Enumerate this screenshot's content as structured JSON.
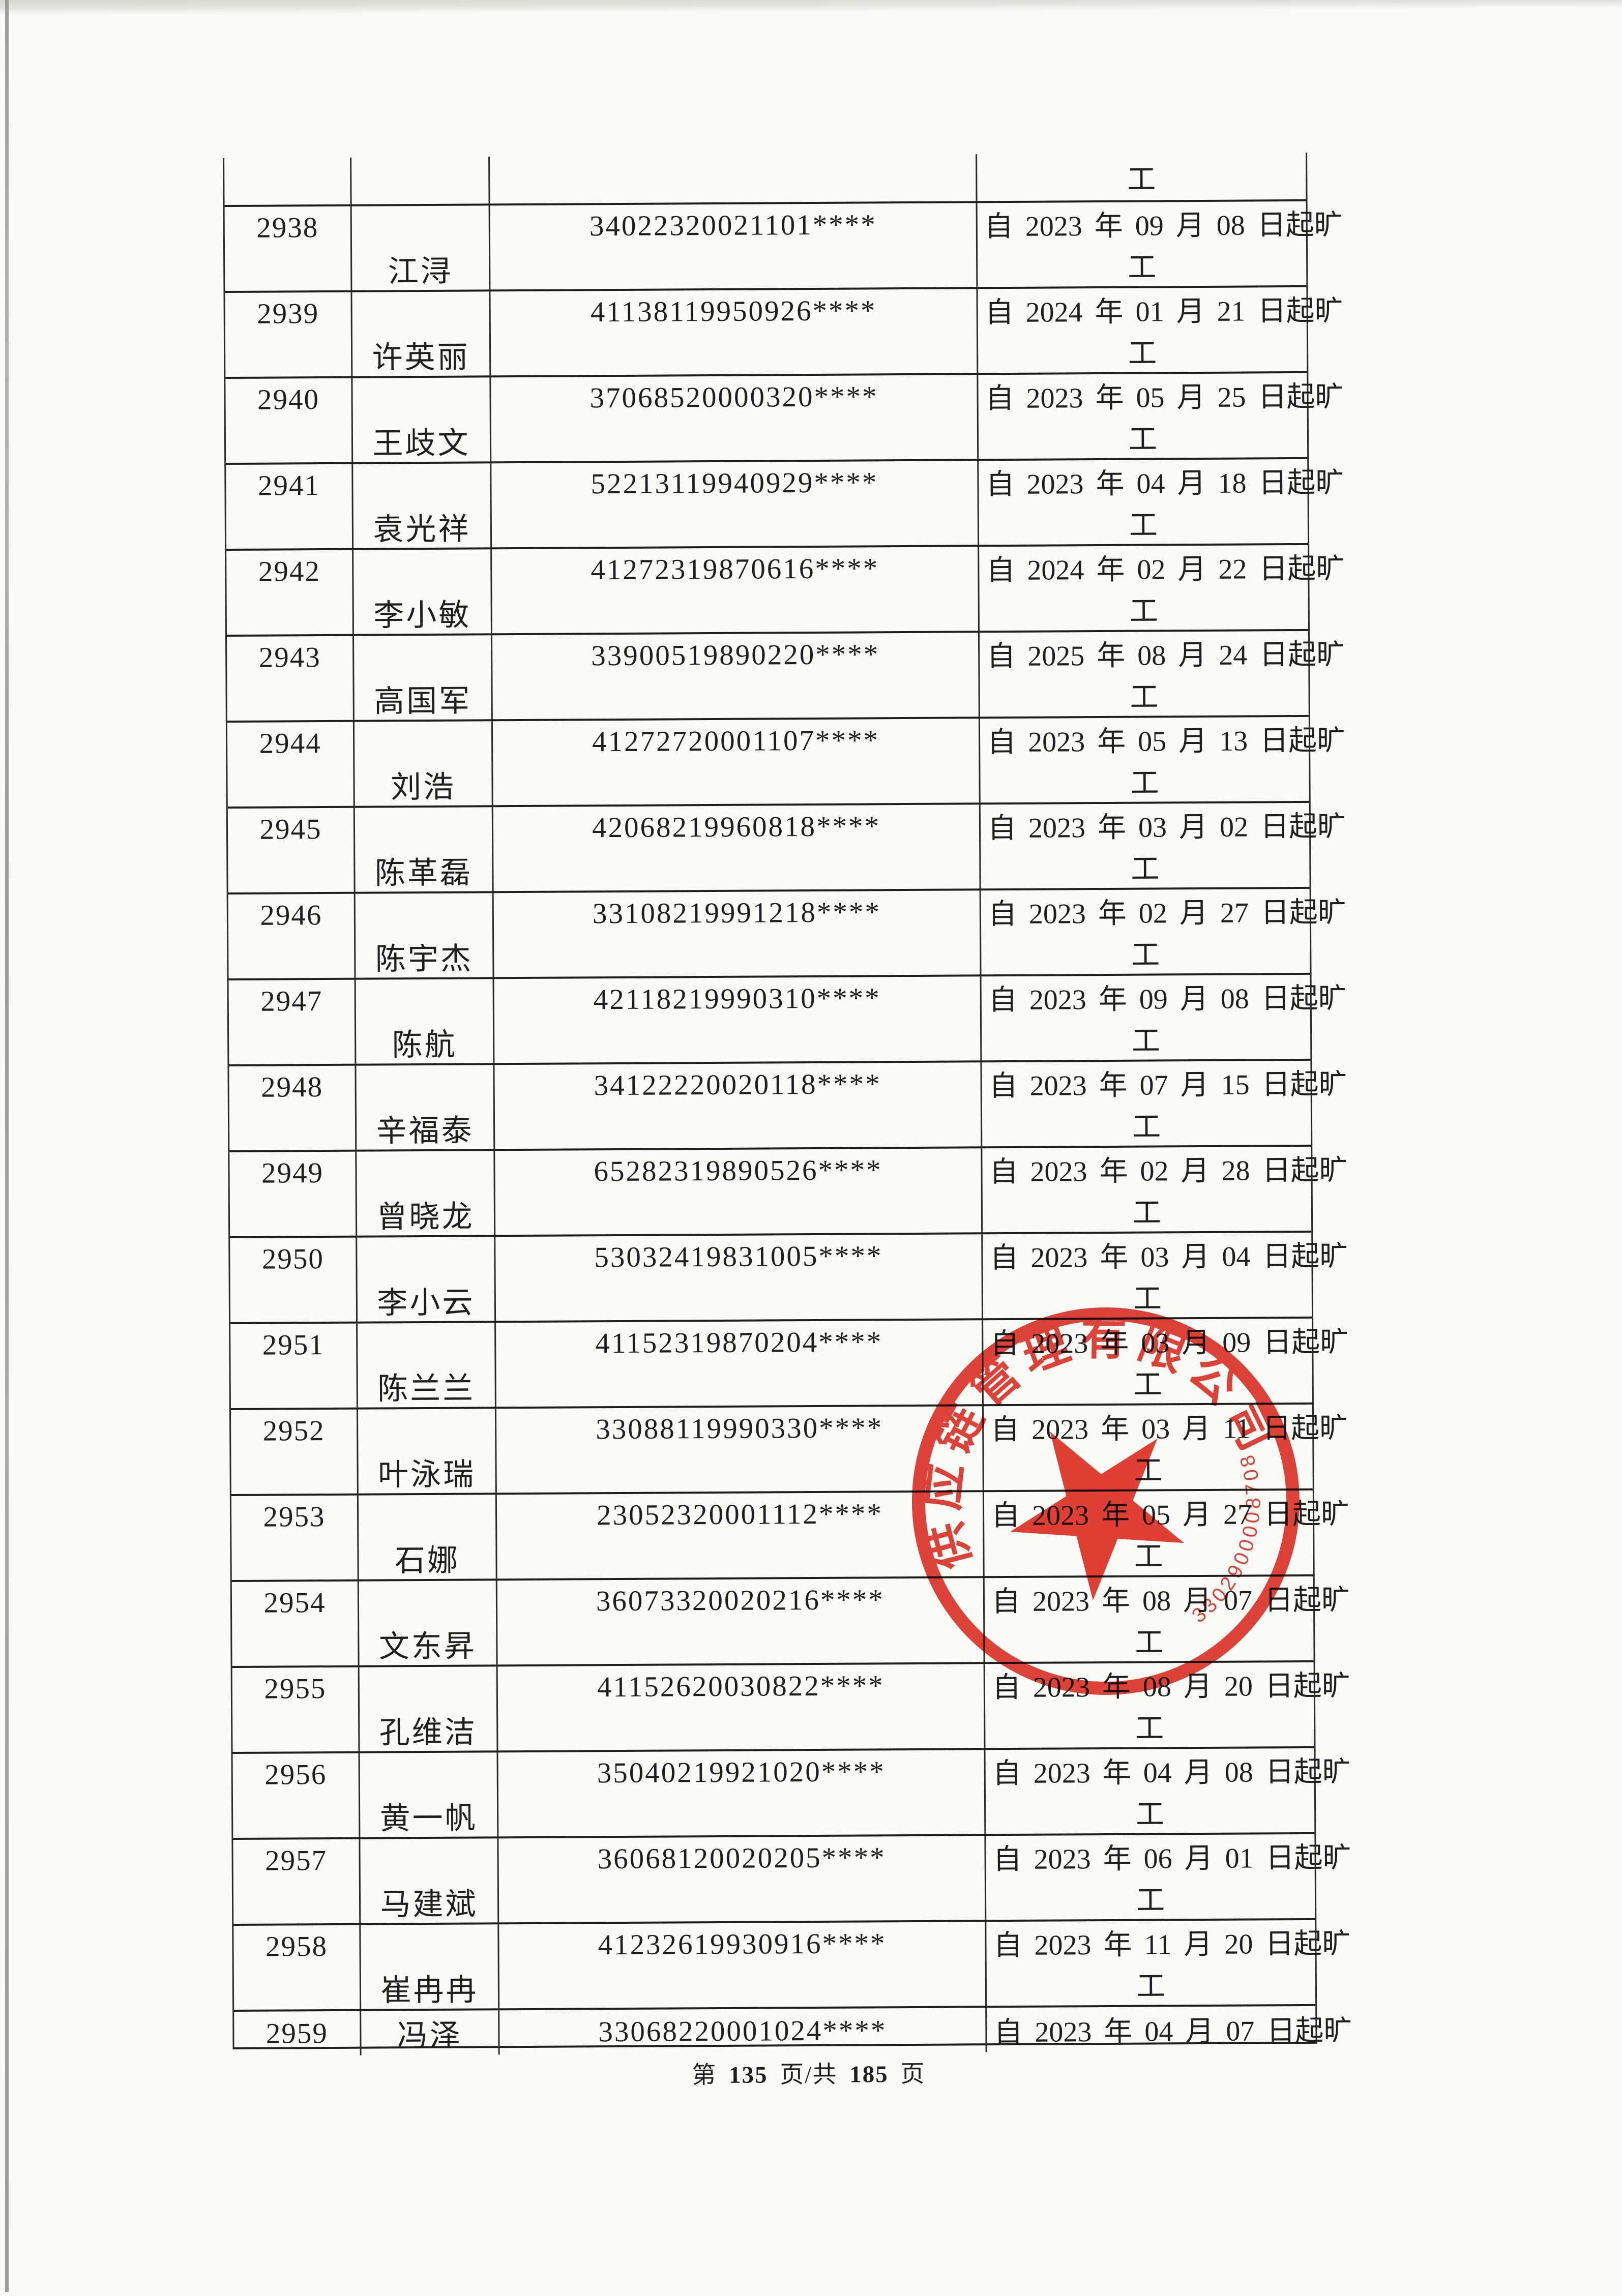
{
  "document": {
    "footer": {
      "text_prefix": "第 ",
      "page_number": "135",
      "text_mid": " 页/共 ",
      "total_pages": "185",
      "text_suffix": " 页"
    },
    "continuation_cell_text": "工"
  },
  "table": {
    "rows": [
      {
        "no": "2938",
        "name": "江浔",
        "id": "34022320021101****",
        "status": "自 2023 年 09 月 08 日起旷工"
      },
      {
        "no": "2939",
        "name": "许英丽",
        "id": "41138119950926****",
        "status": "自 2024 年 01 月 21 日起旷工"
      },
      {
        "no": "2940",
        "name": "王歧文",
        "id": "37068520000320****",
        "status": "自 2023 年 05 月 25 日起旷工"
      },
      {
        "no": "2941",
        "name": "袁光祥",
        "id": "52213119940929****",
        "status": "自 2023 年 04 月 18 日起旷工"
      },
      {
        "no": "2942",
        "name": "李小敏",
        "id": "41272319870616****",
        "status": "自 2024 年 02 月 22 日起旷工"
      },
      {
        "no": "2943",
        "name": "高国军",
        "id": "33900519890220****",
        "status": "自 2025 年 08 月 24 日起旷工"
      },
      {
        "no": "2944",
        "name": "刘浩",
        "id": "41272720001107****",
        "status": "自 2023 年 05 月 13 日起旷工"
      },
      {
        "no": "2945",
        "name": "陈革磊",
        "id": "42068219960818****",
        "status": "自 2023 年 03 月 02 日起旷工"
      },
      {
        "no": "2946",
        "name": "陈宇杰",
        "id": "33108219991218****",
        "status": "自 2023 年 02 月 27 日起旷工"
      },
      {
        "no": "2947",
        "name": "陈航",
        "id": "42118219990310****",
        "status": "自 2023 年 09 月 08 日起旷工"
      },
      {
        "no": "2948",
        "name": "辛福泰",
        "id": "34122220020118****",
        "status": "自 2023 年 07 月 15 日起旷工"
      },
      {
        "no": "2949",
        "name": "曾晓龙",
        "id": "65282319890526****",
        "status": "自 2023 年 02 月 28 日起旷工"
      },
      {
        "no": "2950",
        "name": "李小云",
        "id": "53032419831005****",
        "status": "自 2023 年 03 月 04 日起旷工"
      },
      {
        "no": "2951",
        "name": "陈兰兰",
        "id": "41152319870204****",
        "status": "自 2023 年 03 月 09 日起旷工"
      },
      {
        "no": "2952",
        "name": "叶泳瑞",
        "id": "33088119990330****",
        "status": "自 2023 年 03 月 11 日起旷工"
      },
      {
        "no": "2953",
        "name": "石娜",
        "id": "23052320001112****",
        "status": "自 2023 年 05 月 27 日起旷工"
      },
      {
        "no": "2954",
        "name": "文东昇",
        "id": "36073320020216****",
        "status": "自 2023 年 08 月 07 日起旷工"
      },
      {
        "no": "2955",
        "name": "孔维洁",
        "id": "41152620030822****",
        "status": "自 2023 年 08 月 20 日起旷工"
      },
      {
        "no": "2956",
        "name": "黄一帆",
        "id": "35040219921020****",
        "status": "自 2023 年 04 月 08 日起旷工"
      },
      {
        "no": "2957",
        "name": "马建斌",
        "id": "36068120020205****",
        "status": "自 2023 年 06 月 01 日起旷工"
      },
      {
        "no": "2958",
        "name": "崔冉冉",
        "id": "41232619930916****",
        "status": "自 2023 年 11 月 20 日起旷工"
      },
      {
        "no": "2959",
        "name": "冯泽",
        "id": "33068220001024****",
        "status": "自 2023 年 04 月 07 日起旷",
        "compact": true
      }
    ]
  },
  "stamp": {
    "shape": "circular-red-seal-with-star",
    "arc_text_visible": "供应链管理有限公司",
    "code_visible": "3302900008708",
    "color": "#d92d21"
  }
}
